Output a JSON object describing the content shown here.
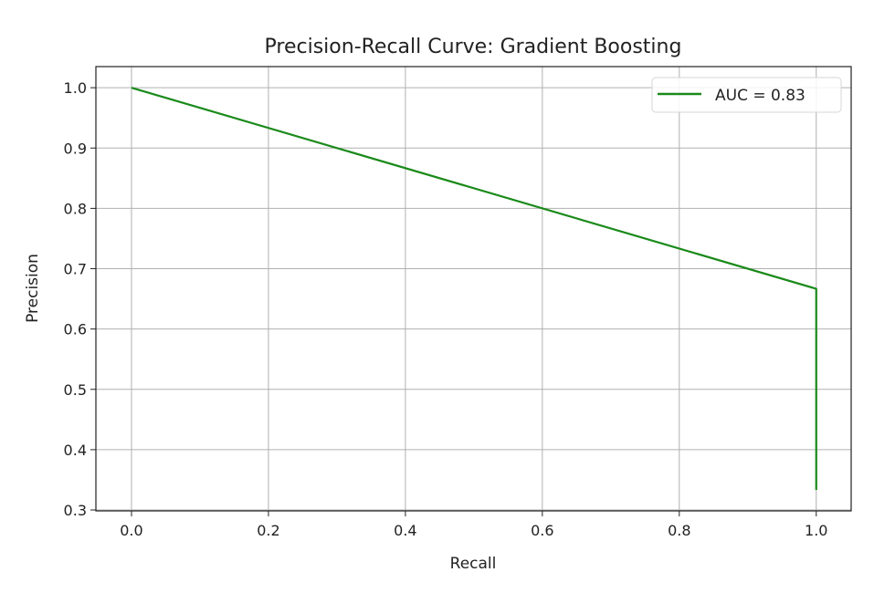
{
  "chart_data": {
    "type": "line",
    "title": "Precision-Recall Curve: Gradient Boosting",
    "xlabel": "Recall",
    "ylabel": "Precision",
    "xlim": [
      -0.052,
      1.051
    ],
    "ylim": [
      0.2985,
      1.035
    ],
    "xticks": [
      0.0,
      0.2,
      0.4,
      0.6,
      0.8,
      1.0
    ],
    "xtick_labels": [
      "0.0",
      "0.2",
      "0.4",
      "0.6",
      "0.8",
      "1.0"
    ],
    "yticks": [
      0.3,
      0.4,
      0.5,
      0.6,
      0.7,
      0.8,
      0.9,
      1.0
    ],
    "ytick_labels": [
      "0.3",
      "0.4",
      "0.5",
      "0.6",
      "0.7",
      "0.8",
      "0.9",
      "1.0"
    ],
    "grid": true,
    "legend_placement": "upper right",
    "series": [
      {
        "name": "AUC = 0.83",
        "color": "#1a8a1a",
        "x": [
          0.0,
          1.0,
          1.0
        ],
        "y": [
          1.0,
          0.6667,
          0.3333
        ]
      }
    ]
  }
}
